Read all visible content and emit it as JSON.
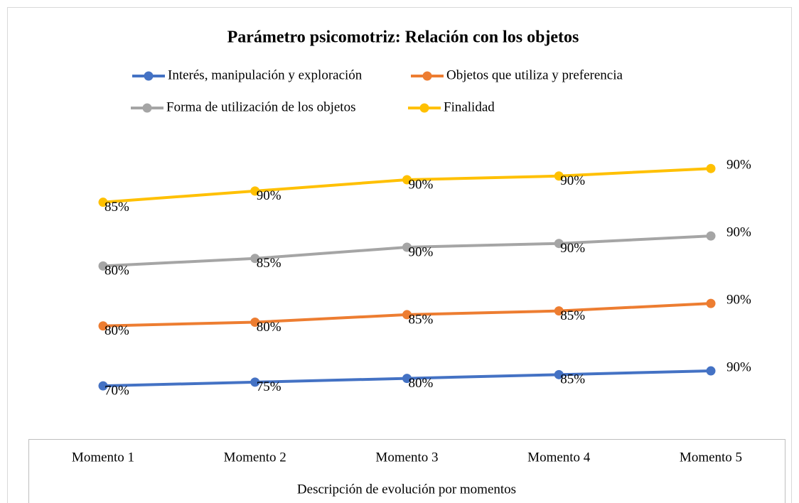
{
  "chart_data": {
    "type": "line",
    "stacked": true,
    "title": "Parámetro psicomotriz: Relación con los objetos",
    "x_label": "Descripción de evolución por momentos",
    "categories": [
      "Momento 1",
      "Momento 2",
      "Momento 3",
      "Momento 4",
      "Momento 5"
    ],
    "ylim": [
      0,
      400
    ],
    "series": [
      {
        "name": "Interés, manipulación y exploración",
        "color": "#4472c4",
        "values": [
          70,
          75,
          80,
          85,
          90
        ],
        "value_labels": [
          "70%",
          "75%",
          "80%",
          "85%",
          "90%"
        ]
      },
      {
        "name": "Objetos que utiliza y preferencia",
        "color": "#ed7d31",
        "values": [
          80,
          80,
          85,
          85,
          90
        ],
        "value_labels": [
          "80%",
          "80%",
          "85%",
          "85%",
          "90%"
        ]
      },
      {
        "name": "Forma de utilización de los objetos",
        "color": "#a5a5a5",
        "values": [
          80,
          85,
          90,
          90,
          90
        ],
        "value_labels": [
          "80%",
          "85%",
          "90%",
          "90%",
          "90%"
        ]
      },
      {
        "name": "Finalidad",
        "color": "#ffc000",
        "values": [
          85,
          90,
          90,
          90,
          90
        ],
        "value_labels": [
          "85%",
          "90%",
          "90%",
          "90%",
          "90%"
        ]
      }
    ]
  }
}
